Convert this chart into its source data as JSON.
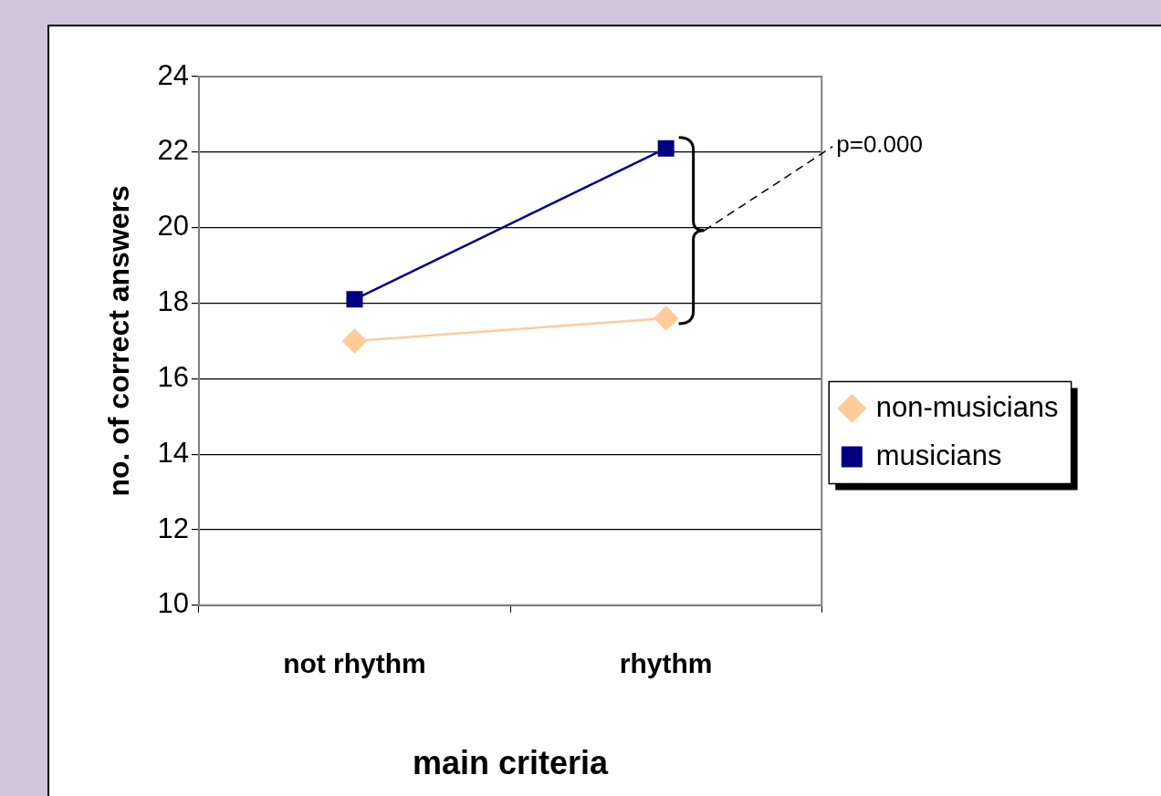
{
  "chart_data": {
    "type": "line",
    "xlabel": "main criteria",
    "ylabel": "no. of correct answers",
    "categories": [
      "not rhythm",
      "rhythm"
    ],
    "series": [
      {
        "name": "non-musicians",
        "color": "#ffcc99",
        "values": [
          17.0,
          17.6
        ],
        "marker": "diamond"
      },
      {
        "name": "musicians",
        "color": "#000080",
        "values": [
          18.1,
          22.1
        ],
        "marker": "square"
      }
    ],
    "ylim": [
      10,
      24
    ],
    "yticks": [
      10,
      12,
      14,
      16,
      18,
      20,
      22,
      24
    ],
    "grid": "y",
    "legend": "right",
    "line_style": "solid",
    "annotations": [
      "p=0.000"
    ]
  }
}
